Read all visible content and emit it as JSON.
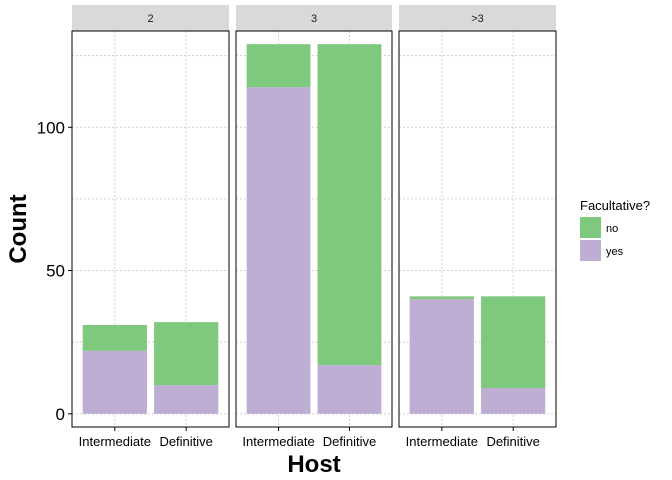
{
  "chart_data": {
    "type": "bar",
    "stacked": true,
    "facet_by": "number of hosts",
    "facets": [
      {
        "label": "2",
        "categories": [
          "Intermediate",
          "Definitive"
        ],
        "series": [
          {
            "name": "yes",
            "values": [
              22,
              10
            ]
          },
          {
            "name": "no",
            "values": [
              9,
              22
            ]
          }
        ]
      },
      {
        "label": "3",
        "categories": [
          "Intermediate",
          "Definitive"
        ],
        "series": [
          {
            "name": "yes",
            "values": [
              114,
              17
            ]
          },
          {
            "name": "no",
            "values": [
              15,
              112
            ]
          }
        ]
      },
      {
        "label": ">3",
        "categories": [
          "Intermediate",
          "Definitive"
        ],
        "series": [
          {
            "name": "yes",
            "values": [
              40,
              9
            ]
          },
          {
            "name": "no",
            "values": [
              1,
              32
            ]
          }
        ]
      }
    ],
    "xlabel": "Host",
    "ylabel": "Count",
    "ylim": [
      -4.6,
      133.6
    ],
    "yticks": [
      0,
      50,
      100
    ],
    "grid": true,
    "legend": {
      "title": "Facultative?",
      "position": "right",
      "entries": [
        {
          "name": "no",
          "color": "#7fc97f"
        },
        {
          "name": "yes",
          "color": "#beaed4"
        }
      ]
    },
    "colors": {
      "no": "#7fc97f",
      "yes": "#beaed4"
    }
  }
}
